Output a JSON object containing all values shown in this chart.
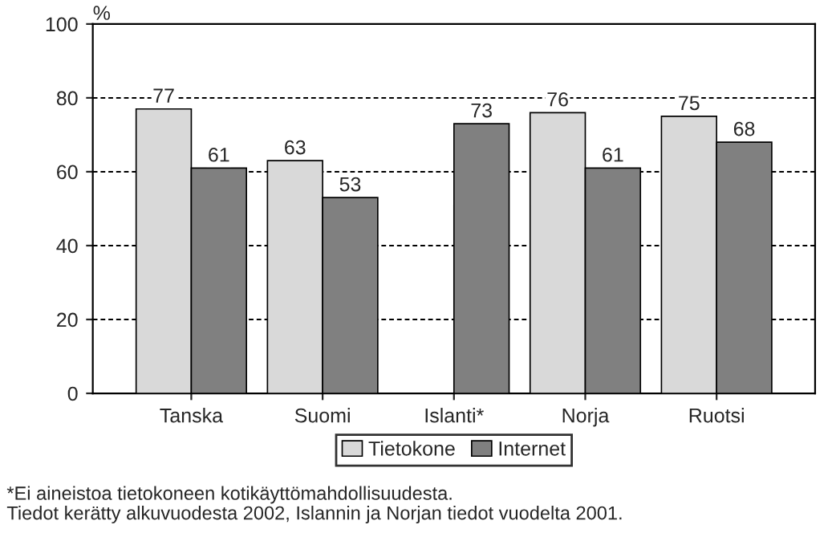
{
  "chart_data": {
    "type": "bar",
    "ylabel": "%",
    "categories": [
      "Tanska",
      "Suomi",
      "Islanti*",
      "Norja",
      "Ruotsi"
    ],
    "series": [
      {
        "name": "Tietokone",
        "color": "#d9d9d9",
        "values": [
          77,
          63,
          null,
          76,
          75
        ]
      },
      {
        "name": "Internet",
        "color": "#808080",
        "values": [
          61,
          53,
          73,
          61,
          68
        ]
      }
    ],
    "ylim": [
      0,
      100
    ],
    "yticks": [
      0,
      20,
      40,
      60,
      80,
      100
    ],
    "grid": "y",
    "legend": "bottom",
    "data_labels": true,
    "annotations": [
      "*Ei aineistoa tietokoneen kotikäyttömahdollisuudesta.",
      "Tiedot kerätty alkuvuodesta 2002, Islannin ja Norjan tiedot vuodelta 2001."
    ]
  }
}
